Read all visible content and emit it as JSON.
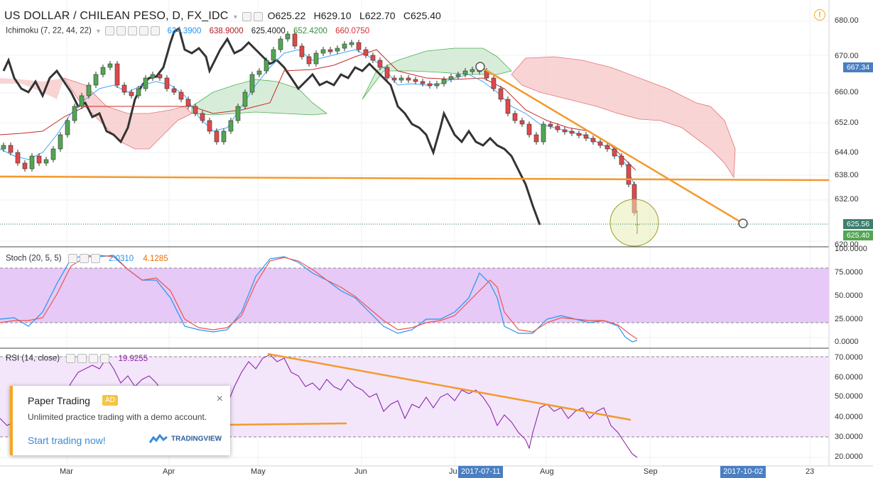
{
  "header": {
    "symbol_title": "US DOLLAR / CHILEAN PESO, D, FX_IDC",
    "open": "O625.22",
    "high": "H629.10",
    "low": "L622.70",
    "close": "C625.40",
    "alert_symbol": "!"
  },
  "ichimoku": {
    "label": "Ichimoku (7, 22, 44, 22)",
    "v1": "634.3900",
    "v2": "638.9000",
    "v3": "625.4000",
    "v4": "652.4200",
    "v5": "660.0750",
    "colors": {
      "tenkan": "#2196f3",
      "kijun": "#b71c1c",
      "chikou": "#333333",
      "spanA": "#388e3c",
      "spanB": "#d32f2f"
    }
  },
  "stoch": {
    "label": "Stoch (20, 5, 5)",
    "k": "2.0310",
    "d": "4.1285"
  },
  "rsi": {
    "label": "RSI (14, close)",
    "value": "19.9255"
  },
  "price_axis": {
    "ticks": [
      "680.00",
      "670.00",
      "660.00",
      "652.00",
      "644.00",
      "638.00",
      "632.00",
      "625.56",
      "620.00"
    ],
    "tag_top": "667.34",
    "tag_mid": "625.56",
    "tag_close": "625.40"
  },
  "stoch_axis": {
    "ticks": [
      "100.0000",
      "75.0000",
      "50.0000",
      "25.0000",
      "0.0000"
    ]
  },
  "rsi_axis": {
    "ticks": [
      "70.0000",
      "60.0000",
      "50.0000",
      "40.0000",
      "30.0000",
      "20.0000"
    ]
  },
  "time_axis": {
    "labels": [
      "Mar",
      "Apr",
      "May",
      "Jun",
      "Ju",
      "Aug",
      "Sep",
      "23"
    ],
    "highlight_1": "2017-07-11",
    "highlight_2": "2017-10-02"
  },
  "ad": {
    "title": "Paper Trading",
    "badge": "AD",
    "text": "Unlimited practice trading with a demo account.",
    "link": "Start trading now!",
    "close": "×",
    "logo": "TRADINGVIEW"
  },
  "colors": {
    "up": "#53a653",
    "down": "#e0484a",
    "trendline": "#f39a2c",
    "stoch_band": "#e3c6f5",
    "rsi_band": "#f1e3fa"
  }
}
